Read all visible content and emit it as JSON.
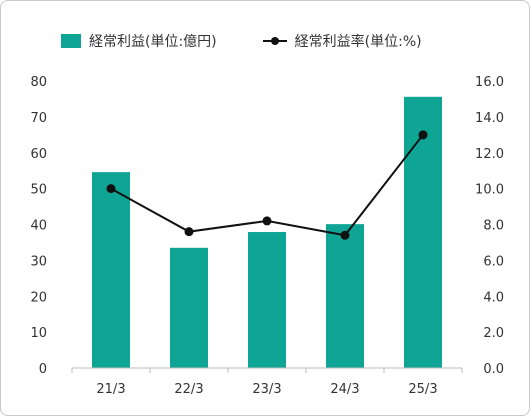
{
  "chart_data": {
    "type": "bar+line",
    "categories": [
      "21/3",
      "22/3",
      "23/3",
      "24/3",
      "25/3"
    ],
    "series": [
      {
        "name": "経常利益(単位:億円)",
        "kind": "bar",
        "axis": "left",
        "values": [
          54.6,
          33.5,
          37.9,
          40.1,
          75.6
        ],
        "color": "#0fa594"
      },
      {
        "name": "経常利益率(単位:%)",
        "kind": "line",
        "axis": "right",
        "values": [
          10.0,
          7.6,
          8.2,
          7.4,
          13.0
        ],
        "color": "#111111"
      }
    ],
    "y_left": {
      "min": 0,
      "max": 80,
      "ticks": [
        "0",
        "10",
        "20",
        "30",
        "40",
        "50",
        "60",
        "70",
        "80"
      ]
    },
    "y_right": {
      "min": 0,
      "max": 16,
      "ticks": [
        "0.0",
        "2.0",
        "4.0",
        "6.0",
        "8.0",
        "10.0",
        "12.0",
        "14.0",
        "16.0"
      ]
    },
    "legend_position": "top",
    "grid": false
  }
}
